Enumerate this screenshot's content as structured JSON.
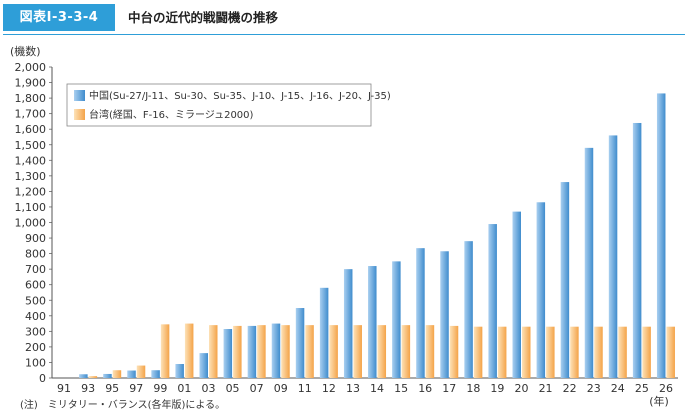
{
  "header": {
    "figure_number": "図表Ⅰ-3-3-4",
    "title": "中台の近代的戦闘機の推移"
  },
  "note": "(注)　ミリタリー・バランス(各年版)による。",
  "colors": {
    "accent": "#2e9ed8",
    "china_light": "#a9cff0",
    "china_dark": "#3f8ccd",
    "taiwan_light": "#fde2b8",
    "taiwan_dark": "#f4a348"
  },
  "chart_data": {
    "type": "bar",
    "ylabel": "(機数)",
    "xunit": "(年)",
    "ylim": [
      0,
      2000
    ],
    "ytick_step": 100,
    "grid": false,
    "legend_position": "top-left",
    "categories": [
      "91",
      "93",
      "95",
      "97",
      "99",
      "01",
      "03",
      "05",
      "07",
      "09",
      "11",
      "12",
      "13",
      "14",
      "15",
      "16",
      "17",
      "18",
      "19",
      "20",
      "21",
      "22",
      "23",
      "24",
      "25",
      "26"
    ],
    "series": [
      {
        "name": "中国(Su-27/J-11、Su-30、Su-35、J-10、J-15、J-16、J-20、J-35)",
        "values": [
          0,
          24,
          26,
          48,
          50,
          90,
          160,
          315,
          335,
          350,
          450,
          580,
          700,
          720,
          750,
          835,
          815,
          880,
          990,
          1070,
          1130,
          1260,
          1480,
          1560,
          1640,
          1830
        ]
      },
      {
        "name": "台湾(経国、F-16、ミラージュ2000)",
        "values": [
          0,
          12,
          50,
          80,
          345,
          350,
          340,
          335,
          340,
          340,
          340,
          340,
          340,
          340,
          340,
          340,
          335,
          330,
          330,
          330,
          330,
          330,
          330,
          330,
          330,
          330
        ]
      }
    ]
  }
}
